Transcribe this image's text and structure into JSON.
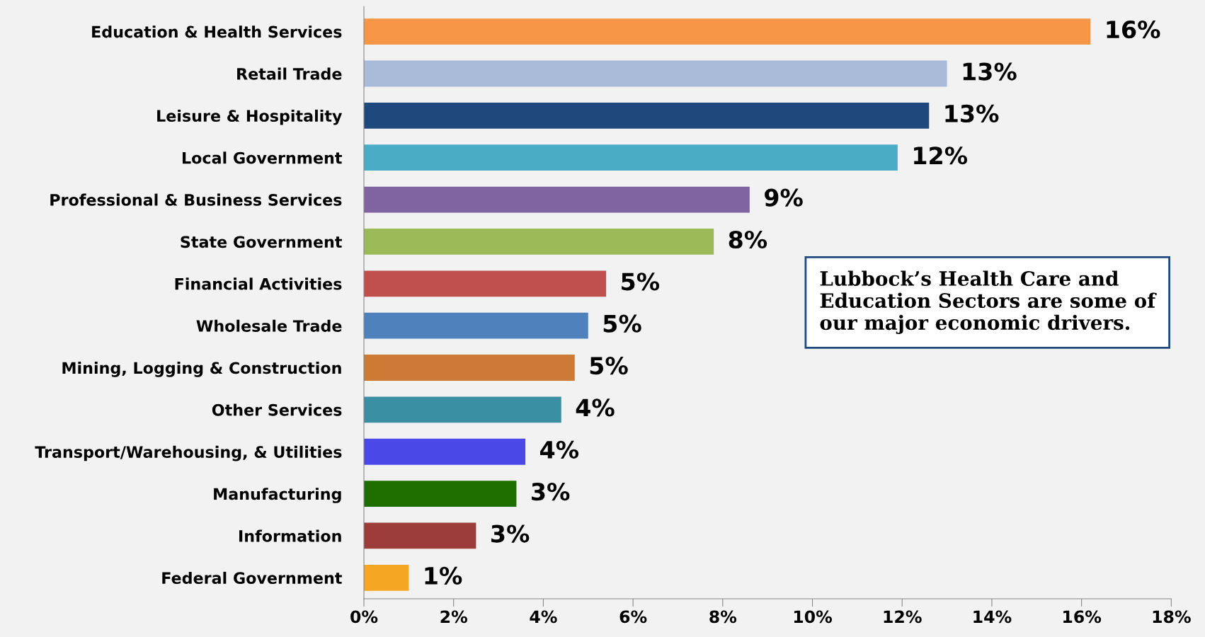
{
  "chart_data": {
    "type": "bar",
    "orientation": "horizontal",
    "categories": [
      "Education & Health Services",
      "Retail Trade",
      "Leisure & Hospitality",
      "Local Government",
      "Professional & Business Services",
      "State Government",
      "Financial Activities",
      "Wholesale Trade",
      "Mining, Logging & Construction",
      "Other Services",
      "Transport/Warehousing, & Utilities",
      "Manufacturing",
      "Information",
      "Federal Government"
    ],
    "values": [
      16.2,
      13.0,
      12.6,
      11.9,
      8.6,
      7.8,
      5.4,
      5.0,
      4.7,
      4.4,
      3.6,
      3.4,
      2.5,
      1.0
    ],
    "colors": [
      "#f79646",
      "#a9bbd9",
      "#1f497d",
      "#4bacc6",
      "#8064a2",
      "#9bbb59",
      "#c0504d",
      "#4f81bd",
      "#cc7a35",
      "#3a8fa3",
      "#4b48e8",
      "#1e6e00",
      "#9c3d3a",
      "#f5a623"
    ],
    "value_labels": [
      "16%",
      "13%",
      "13%",
      "12%",
      "9%",
      "8%",
      "5%",
      "5%",
      "5%",
      "4%",
      "4%",
      "3%",
      "3%",
      "1%"
    ],
    "xlim": [
      0,
      18
    ],
    "xticks": [
      {
        "value": 0,
        "label": "0%"
      },
      {
        "value": 2,
        "label": "2%"
      },
      {
        "value": 4,
        "label": "4%"
      },
      {
        "value": 6,
        "label": "6%"
      },
      {
        "value": 8,
        "label": "8%"
      },
      {
        "value": 10,
        "label": "10%"
      },
      {
        "value": 12,
        "label": "12%"
      },
      {
        "value": 14,
        "label": "14%"
      },
      {
        "value": 16,
        "label": "16%"
      },
      {
        "value": 18,
        "label": "18%"
      }
    ],
    "grid": false,
    "annotations": [
      "Lubbock’s Health Care and Education Sectors are some of our major economic drivers."
    ]
  }
}
